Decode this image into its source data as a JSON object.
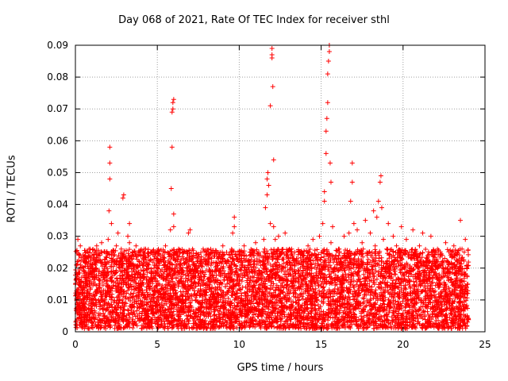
{
  "chart_data": {
    "type": "scatter",
    "title": "Day 068 of 2021, Rate Of TEC Index for receiver sthl",
    "xlabel": "GPS time / hours",
    "ylabel": "ROTI / TECUs",
    "xlim": [
      0,
      25
    ],
    "ylim": [
      0,
      0.09
    ],
    "grid": true,
    "legend": "none",
    "marker": "+",
    "series_color": "#ff0000",
    "xticks": [
      {
        "value": 0,
        "label": "0"
      },
      {
        "value": 5,
        "label": "5"
      },
      {
        "value": 10,
        "label": "10"
      },
      {
        "value": 15,
        "label": "15"
      },
      {
        "value": 20,
        "label": "20"
      },
      {
        "value": 25,
        "label": "25"
      }
    ],
    "yticks": [
      {
        "value": 0,
        "label": "0"
      },
      {
        "value": 0.01,
        "label": "0.01"
      },
      {
        "value": 0.02,
        "label": "0.02"
      },
      {
        "value": 0.03,
        "label": "0.03"
      },
      {
        "value": 0.04,
        "label": "0.04"
      },
      {
        "value": 0.05,
        "label": "0.05"
      },
      {
        "value": 0.06,
        "label": "0.06"
      },
      {
        "value": 0.07,
        "label": "0.07"
      },
      {
        "value": 0.08,
        "label": "0.08"
      },
      {
        "value": 0.09,
        "label": "0.09"
      }
    ],
    "points": [
      [
        0.1,
        0.004
      ],
      [
        0.1,
        0.012
      ],
      [
        0.1,
        0.018
      ],
      [
        0.1,
        0.025
      ],
      [
        0.15,
        0.029
      ],
      [
        0.2,
        0.008
      ],
      [
        0.2,
        0.015
      ],
      [
        0.3,
        0.006
      ],
      [
        0.3,
        0.021
      ],
      [
        0.3,
        0.027
      ],
      [
        0.4,
        0.003
      ],
      [
        0.4,
        0.013
      ],
      [
        0.5,
        0.009
      ],
      [
        0.5,
        0.019
      ],
      [
        0.6,
        0.005
      ],
      [
        0.6,
        0.024
      ],
      [
        0.7,
        0.011
      ],
      [
        0.7,
        0.016
      ],
      [
        0.8,
        0.007
      ],
      [
        0.8,
        0.022
      ],
      [
        0.9,
        0.014
      ],
      [
        0.9,
        0.026
      ],
      [
        1.0,
        0.004
      ],
      [
        1.0,
        0.018
      ],
      [
        1.1,
        0.009
      ],
      [
        1.1,
        0.023
      ],
      [
        1.2,
        0.006
      ],
      [
        1.2,
        0.015
      ],
      [
        1.3,
        0.012
      ],
      [
        1.3,
        0.027
      ],
      [
        1.4,
        0.003
      ],
      [
        1.4,
        0.019
      ],
      [
        1.5,
        0.008
      ],
      [
        1.5,
        0.024
      ],
      [
        1.6,
        0.013
      ],
      [
        1.6,
        0.028
      ],
      [
        1.7,
        0.005
      ],
      [
        1.7,
        0.017
      ],
      [
        1.8,
        0.01
      ],
      [
        1.8,
        0.021
      ],
      [
        1.9,
        0.007
      ],
      [
        1.9,
        0.025
      ],
      [
        2.0,
        0.014
      ],
      [
        2.0,
        0.029
      ],
      [
        2.05,
        0.038
      ],
      [
        2.1,
        0.048
      ],
      [
        2.1,
        0.053
      ],
      [
        2.1,
        0.058
      ],
      [
        2.2,
        0.034
      ],
      [
        2.2,
        0.011
      ],
      [
        2.3,
        0.006
      ],
      [
        2.3,
        0.019
      ],
      [
        2.4,
        0.022
      ],
      [
        2.5,
        0.009
      ],
      [
        2.5,
        0.027
      ],
      [
        2.6,
        0.015
      ],
      [
        2.6,
        0.031
      ],
      [
        2.7,
        0.004
      ],
      [
        2.7,
        0.02
      ],
      [
        2.8,
        0.012
      ],
      [
        2.8,
        0.026
      ],
      [
        2.9,
        0.042
      ],
      [
        2.95,
        0.043
      ],
      [
        3.0,
        0.018
      ],
      [
        3.0,
        0.008
      ],
      [
        3.1,
        0.023
      ],
      [
        3.2,
        0.013
      ],
      [
        3.2,
        0.03
      ],
      [
        3.3,
        0.028
      ],
      [
        3.3,
        0.034
      ],
      [
        3.4,
        0.006
      ],
      [
        3.4,
        0.021
      ],
      [
        3.5,
        0.016
      ],
      [
        3.5,
        0.025
      ],
      [
        3.6,
        0.01
      ],
      [
        3.7,
        0.019
      ],
      [
        3.7,
        0.027
      ],
      [
        3.8,
        0.005
      ],
      [
        3.8,
        0.014
      ],
      [
        3.9,
        0.022
      ],
      [
        4.0,
        0.009
      ],
      [
        4.0,
        0.024
      ],
      [
        4.1,
        0.013
      ],
      [
        4.2,
        0.018
      ],
      [
        4.2,
        0.026
      ],
      [
        4.3,
        0.007
      ],
      [
        4.4,
        0.015
      ],
      [
        4.4,
        0.021
      ],
      [
        4.5,
        0.011
      ],
      [
        4.6,
        0.017
      ],
      [
        4.6,
        0.025
      ],
      [
        4.7,
        0.006
      ],
      [
        4.8,
        0.013
      ],
      [
        4.8,
        0.02
      ],
      [
        4.9,
        0.009
      ],
      [
        5.0,
        0.016
      ],
      [
        5.0,
        0.023
      ],
      [
        5.1,
        0.004
      ],
      [
        5.2,
        0.012
      ],
      [
        5.2,
        0.019
      ],
      [
        5.3,
        0.008
      ],
      [
        5.4,
        0.022
      ],
      [
        5.5,
        0.014
      ],
      [
        5.5,
        0.027
      ],
      [
        5.6,
        0.01
      ],
      [
        5.7,
        0.018
      ],
      [
        5.8,
        0.024
      ],
      [
        5.8,
        0.032
      ],
      [
        5.85,
        0.045
      ],
      [
        5.9,
        0.058
      ],
      [
        5.9,
        0.069
      ],
      [
        5.95,
        0.07
      ],
      [
        5.95,
        0.072
      ],
      [
        6.0,
        0.073
      ],
      [
        6.0,
        0.037
      ],
      [
        6.0,
        0.033
      ],
      [
        6.1,
        0.012
      ],
      [
        6.1,
        0.021
      ],
      [
        6.2,
        0.007
      ],
      [
        6.3,
        0.016
      ],
      [
        6.3,
        0.026
      ],
      [
        6.4,
        0.011
      ],
      [
        6.5,
        0.019
      ],
      [
        6.6,
        0.006
      ],
      [
        6.6,
        0.023
      ],
      [
        6.7,
        0.014
      ],
      [
        6.8,
        0.02
      ],
      [
        6.9,
        0.031
      ],
      [
        7.0,
        0.032
      ],
      [
        7.0,
        0.009
      ],
      [
        7.1,
        0.017
      ],
      [
        7.2,
        0.024
      ],
      [
        7.3,
        0.012
      ],
      [
        7.4,
        0.005
      ],
      [
        7.4,
        0.019
      ],
      [
        7.5,
        0.015
      ],
      [
        7.6,
        0.022
      ],
      [
        7.7,
        0.008
      ],
      [
        7.8,
        0.013
      ],
      [
        7.8,
        0.026
      ],
      [
        7.9,
        0.018
      ],
      [
        8.0,
        0.01
      ],
      [
        8.1,
        0.021
      ],
      [
        8.2,
        0.006
      ],
      [
        8.3,
        0.016
      ],
      [
        8.3,
        0.025
      ],
      [
        8.4,
        0.012
      ],
      [
        8.5,
        0.019
      ],
      [
        8.6,
        0.008
      ],
      [
        8.7,
        0.023
      ],
      [
        8.8,
        0.014
      ],
      [
        8.9,
        0.02
      ],
      [
        9.0,
        0.011
      ],
      [
        9.0,
        0.027
      ],
      [
        9.1,
        0.017
      ],
      [
        9.2,
        0.007
      ],
      [
        9.3,
        0.022
      ],
      [
        9.4,
        0.013
      ],
      [
        9.5,
        0.025
      ],
      [
        9.6,
        0.031
      ],
      [
        9.7,
        0.033
      ],
      [
        9.7,
        0.036
      ],
      [
        9.8,
        0.01
      ],
      [
        9.9,
        0.018
      ],
      [
        10.0,
        0.024
      ],
      [
        10.0,
        0.015
      ],
      [
        10.1,
        0.008
      ],
      [
        10.2,
        0.021
      ],
      [
        10.3,
        0.027
      ],
      [
        10.4,
        0.012
      ],
      [
        10.5,
        0.019
      ],
      [
        10.6,
        0.006
      ],
      [
        10.7,
        0.025
      ],
      [
        10.8,
        0.016
      ],
      [
        10.9,
        0.022
      ],
      [
        11.0,
        0.011
      ],
      [
        11.0,
        0.028
      ],
      [
        11.1,
        0.017
      ],
      [
        11.2,
        0.009
      ],
      [
        11.3,
        0.024
      ],
      [
        11.4,
        0.014
      ],
      [
        11.5,
        0.029
      ],
      [
        11.6,
        0.02
      ],
      [
        11.6,
        0.039
      ],
      [
        11.7,
        0.043
      ],
      [
        11.7,
        0.048
      ],
      [
        11.75,
        0.05
      ],
      [
        11.8,
        0.046
      ],
      [
        11.9,
        0.071
      ],
      [
        11.9,
        0.034
      ],
      [
        12.0,
        0.086
      ],
      [
        12.0,
        0.087
      ],
      [
        12.0,
        0.089
      ],
      [
        12.05,
        0.077
      ],
      [
        12.1,
        0.054
      ],
      [
        12.1,
        0.033
      ],
      [
        12.2,
        0.029
      ],
      [
        12.2,
        0.013
      ],
      [
        12.3,
        0.021
      ],
      [
        12.4,
        0.03
      ],
      [
        12.5,
        0.017
      ],
      [
        12.6,
        0.025
      ],
      [
        12.6,
        0.008
      ],
      [
        12.7,
        0.02
      ],
      [
        12.8,
        0.031
      ],
      [
        12.9,
        0.014
      ],
      [
        13.0,
        0.023
      ],
      [
        13.0,
        0.01
      ],
      [
        13.1,
        0.018
      ],
      [
        13.2,
        0.026
      ],
      [
        13.3,
        0.012
      ],
      [
        13.4,
        0.021
      ],
      [
        13.5,
        0.007
      ],
      [
        13.6,
        0.019
      ],
      [
        13.7,
        0.025
      ],
      [
        13.8,
        0.015
      ],
      [
        13.9,
        0.022
      ],
      [
        14.0,
        0.009
      ],
      [
        14.1,
        0.017
      ],
      [
        14.2,
        0.027
      ],
      [
        14.3,
        0.013
      ],
      [
        14.4,
        0.02
      ],
      [
        14.5,
        0.029
      ],
      [
        14.6,
        0.011
      ],
      [
        14.7,
        0.024
      ],
      [
        14.8,
        0.016
      ],
      [
        14.9,
        0.03
      ],
      [
        15.0,
        0.021
      ],
      [
        15.1,
        0.034
      ],
      [
        15.2,
        0.041
      ],
      [
        15.2,
        0.044
      ],
      [
        15.3,
        0.056
      ],
      [
        15.3,
        0.063
      ],
      [
        15.35,
        0.067
      ],
      [
        15.4,
        0.072
      ],
      [
        15.4,
        0.081
      ],
      [
        15.45,
        0.085
      ],
      [
        15.5,
        0.088
      ],
      [
        15.5,
        0.09
      ],
      [
        15.55,
        0.053
      ],
      [
        15.6,
        0.047
      ],
      [
        15.6,
        0.028
      ],
      [
        15.7,
        0.019
      ],
      [
        15.7,
        0.033
      ],
      [
        15.8,
        0.012
      ],
      [
        15.9,
        0.024
      ],
      [
        16.0,
        0.017
      ],
      [
        16.0,
        0.008
      ],
      [
        16.1,
        0.026
      ],
      [
        16.2,
        0.014
      ],
      [
        16.3,
        0.021
      ],
      [
        16.4,
        0.03
      ],
      [
        16.5,
        0.011
      ],
      [
        16.6,
        0.023
      ],
      [
        16.7,
        0.031
      ],
      [
        16.8,
        0.041
      ],
      [
        16.9,
        0.053
      ],
      [
        16.9,
        0.047
      ],
      [
        17.0,
        0.034
      ],
      [
        17.0,
        0.016
      ],
      [
        17.1,
        0.025
      ],
      [
        17.2,
        0.032
      ],
      [
        17.3,
        0.012
      ],
      [
        17.4,
        0.02
      ],
      [
        17.5,
        0.028
      ],
      [
        17.6,
        0.018
      ],
      [
        17.7,
        0.035
      ],
      [
        17.8,
        0.024
      ],
      [
        17.9,
        0.013
      ],
      [
        18.0,
        0.031
      ],
      [
        18.1,
        0.021
      ],
      [
        18.2,
        0.038
      ],
      [
        18.3,
        0.027
      ],
      [
        18.4,
        0.036
      ],
      [
        18.5,
        0.041
      ],
      [
        18.6,
        0.047
      ],
      [
        18.65,
        0.049
      ],
      [
        18.7,
        0.039
      ],
      [
        18.8,
        0.029
      ],
      [
        18.9,
        0.017
      ],
      [
        19.0,
        0.026
      ],
      [
        19.1,
        0.034
      ],
      [
        19.2,
        0.014
      ],
      [
        19.3,
        0.022
      ],
      [
        19.4,
        0.03
      ],
      [
        19.5,
        0.019
      ],
      [
        19.6,
        0.027
      ],
      [
        19.7,
        0.011
      ],
      [
        19.8,
        0.024
      ],
      [
        19.9,
        0.033
      ],
      [
        20.0,
        0.016
      ],
      [
        20.1,
        0.021
      ],
      [
        20.2,
        0.029
      ],
      [
        20.3,
        0.012
      ],
      [
        20.4,
        0.025
      ],
      [
        20.5,
        0.018
      ],
      [
        20.6,
        0.032
      ],
      [
        20.7,
        0.023
      ],
      [
        20.8,
        0.009
      ],
      [
        20.9,
        0.02
      ],
      [
        21.0,
        0.027
      ],
      [
        21.1,
        0.015
      ],
      [
        21.2,
        0.031
      ],
      [
        21.3,
        0.019
      ],
      [
        21.4,
        0.008
      ],
      [
        21.5,
        0.024
      ],
      [
        21.6,
        0.013
      ],
      [
        21.7,
        0.03
      ],
      [
        21.8,
        0.017
      ],
      [
        21.9,
        0.022
      ],
      [
        22.0,
        0.011
      ],
      [
        22.1,
        0.026
      ],
      [
        22.2,
        0.018
      ],
      [
        22.3,
        0.007
      ],
      [
        22.4,
        0.021
      ],
      [
        22.5,
        0.014
      ],
      [
        22.6,
        0.028
      ],
      [
        22.7,
        0.01
      ],
      [
        22.8,
        0.019
      ],
      [
        22.9,
        0.024
      ],
      [
        23.0,
        0.013
      ],
      [
        23.1,
        0.027
      ],
      [
        23.2,
        0.016
      ],
      [
        23.3,
        0.022
      ],
      [
        23.4,
        0.009
      ],
      [
        23.5,
        0.035
      ],
      [
        23.5,
        0.018
      ],
      [
        23.6,
        0.026
      ],
      [
        23.7,
        0.012
      ],
      [
        23.8,
        0.029
      ],
      [
        23.9,
        0.02
      ],
      [
        23.9,
        0.005
      ],
      [
        23.95,
        0.015
      ]
    ],
    "dense_band": {
      "description_hint": "dense scatter of points across the full day",
      "x_range": [
        0,
        24
      ],
      "y_range": [
        0.001,
        0.026
      ],
      "count": 6000
    }
  }
}
